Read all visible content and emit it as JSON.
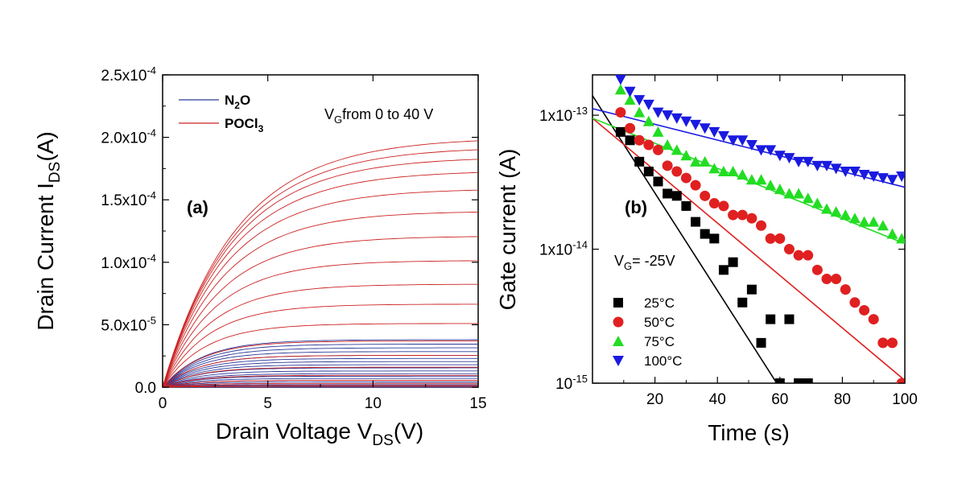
{
  "chart_data": [
    {
      "type": "line",
      "panel_label": "(a)",
      "xlabel": {
        "main": "Drain Voltage V",
        "sub": "DS",
        "tail": "(V)"
      },
      "ylabel": {
        "main": "Drain Current I",
        "sub": "DS",
        "tail": "(A)"
      },
      "xlim": [
        0,
        15
      ],
      "ylim": [
        0,
        0.00025
      ],
      "x_ticks": [
        0,
        5,
        10,
        15
      ],
      "x_tick_labels": [
        "0",
        "5",
        "10",
        "15"
      ],
      "y_ticks": [
        0,
        5e-05,
        0.0001,
        0.00015,
        0.0002,
        0.00025
      ],
      "y_tick_labels": [
        {
          "mant": "0.0",
          "exp": ""
        },
        {
          "mant": "5.0x10",
          "exp": "-5"
        },
        {
          "mant": "1.0x10",
          "exp": "-4"
        },
        {
          "mant": "1.5x10",
          "exp": "-4"
        },
        {
          "mant": "2.0x10",
          "exp": "-4"
        },
        {
          "mant": "2.5x10",
          "exp": "-4"
        }
      ],
      "annotation": {
        "main": "V",
        "sub": "G",
        "tail": "from 0 to 40 V"
      },
      "legend_placement": "top-left",
      "series": [
        {
          "name": {
            "main": "N",
            "sub": "2",
            "tail": "O"
          },
          "color": "#2b3a9a",
          "saturation_currents": [
            0.0,
            5e-07,
            1.2e-06,
            2e-06,
            3e-06,
            4.2e-06,
            5.5e-06,
            7e-06,
            8.8e-06,
            1.08e-05,
            1.3e-05,
            1.55e-05,
            1.8e-05,
            2.05e-05,
            2.3e-05,
            2.55e-05,
            2.85e-05,
            3.15e-05,
            3.45e-05,
            3.8e-05
          ]
        },
        {
          "name": {
            "main": "POCl",
            "sub": "3",
            "tail": ""
          },
          "color": "#cc2222",
          "saturation_currents": [
            5e-07,
            1.5e-06,
            3e-06,
            5.5e-06,
            9.5e-06,
            1.6e-05,
            2.55e-05,
            3.7e-05,
            5.1e-05,
            6.65e-05,
            8.25e-05,
            0.0001015,
            0.000121,
            0.000141,
            0.000159,
            0.0001735,
            0.0001845,
            0.0001925,
            0.0002
          ]
        }
      ]
    },
    {
      "type": "scatter",
      "panel_label": "(b)",
      "xlabel": "Time (s)",
      "ylabel": "Gate current (A)",
      "xlim": [
        0,
        100
      ],
      "ylim": [
        1e-15,
        2e-13
      ],
      "y_scale": "log",
      "x_ticks": [
        20,
        40,
        60,
        80,
        100
      ],
      "x_tick_labels": [
        "20",
        "40",
        "60",
        "80",
        "100"
      ],
      "y_ticks": [
        1e-15,
        1e-14,
        1e-13
      ],
      "y_tick_labels": [
        {
          "mant": "10",
          "exp": "-15"
        },
        {
          "mant": "1x10",
          "exp": "-14"
        },
        {
          "mant": "1x10",
          "exp": "-13"
        }
      ],
      "annotation": {
        "main": "V",
        "sub": "G",
        "tail": "= -25V"
      },
      "legend_placement": "bottom-left",
      "series": [
        {
          "name": "25°C",
          "marker": "square",
          "color": "#000000",
          "fit": [
            [
              0,
              1.4e-13
            ],
            [
              59,
              1e-15
            ]
          ],
          "x": [
            9,
            12,
            15,
            18,
            21,
            24,
            27,
            30,
            33,
            36,
            39,
            42,
            45,
            48,
            51,
            54,
            57,
            60,
            63,
            66,
            69
          ],
          "y": [
            7.5e-14,
            6.5e-14,
            4.5e-14,
            3.8e-14,
            3.2e-14,
            2.6e-14,
            2.5e-14,
            2.1e-14,
            1.6e-14,
            1.3e-14,
            1.2e-14,
            7e-15,
            8e-15,
            4e-15,
            5e-15,
            2e-15,
            3e-15,
            1e-15,
            3e-15,
            1e-15,
            1e-15
          ]
        },
        {
          "name": "50°C",
          "marker": "circle",
          "color": "#e02020",
          "fit": [
            [
              0,
              9.5e-14
            ],
            [
              100,
              1.05e-15
            ]
          ],
          "x": [
            9,
            12,
            15,
            18,
            21,
            24,
            27,
            30,
            33,
            36,
            39,
            42,
            45,
            48,
            51,
            54,
            57,
            60,
            63,
            66,
            69,
            72,
            75,
            78,
            81,
            84,
            87,
            90,
            93,
            96,
            99
          ],
          "y": [
            1.05e-13,
            8e-14,
            6.5e-14,
            6e-14,
            5.5e-14,
            4.2e-14,
            3.8e-14,
            3.4e-14,
            3e-14,
            2.5e-14,
            2.2e-14,
            2.1e-14,
            1.8e-14,
            1.8e-14,
            1.7e-14,
            1.5e-14,
            1.2e-14,
            1.2e-14,
            1e-14,
            9e-15,
            9e-15,
            7e-15,
            6e-15,
            6e-15,
            5e-15,
            4e-15,
            3.5e-15,
            3e-15,
            2e-15,
            2e-15,
            1e-15
          ]
        },
        {
          "name": "75°C",
          "marker": "triangle-up",
          "color": "#22dd22",
          "fit": [
            [
              0,
              9.5e-14
            ],
            [
              100,
              1.1e-14
            ]
          ],
          "x": [
            9,
            12,
            15,
            18,
            21,
            24,
            27,
            30,
            33,
            36,
            39,
            42,
            45,
            48,
            51,
            54,
            57,
            60,
            63,
            66,
            69,
            72,
            75,
            78,
            81,
            84,
            87,
            90,
            93,
            96,
            99
          ],
          "y": [
            1.55e-13,
            1.3e-13,
            1.05e-13,
            9e-14,
            7.5e-14,
            6e-14,
            5.5e-14,
            5e-14,
            4.5e-14,
            4.5e-14,
            4e-14,
            3.8e-14,
            3.8e-14,
            3.6e-14,
            3.3e-14,
            3.3e-14,
            3e-14,
            2.8e-14,
            2.6e-14,
            2.6e-14,
            2.4e-14,
            2.2e-14,
            2e-14,
            1.9e-14,
            1.8e-14,
            1.7e-14,
            1.6e-14,
            1.6e-14,
            1.5e-14,
            1.3e-14,
            1.2e-14
          ]
        },
        {
          "name": "100°C",
          "marker": "triangle-down",
          "color": "#1a1ae0",
          "fit": [
            [
              0,
              1.12e-13
            ],
            [
              100,
              2.9e-14
            ]
          ],
          "x": [
            9,
            12,
            15,
            18,
            21,
            24,
            27,
            30,
            33,
            36,
            39,
            42,
            45,
            48,
            51,
            54,
            57,
            60,
            63,
            66,
            69,
            72,
            75,
            78,
            81,
            84,
            87,
            90,
            93,
            96,
            99
          ],
          "y": [
            1.85e-13,
            1.5e-13,
            1.3e-13,
            1.2e-13,
            1.05e-13,
            1e-13,
            9.5e-14,
            9e-14,
            8.5e-14,
            8e-14,
            7.5e-14,
            7e-14,
            6.5e-14,
            6.5e-14,
            6e-14,
            5.5e-14,
            5.5e-14,
            5e-14,
            4.8e-14,
            4.5e-14,
            4.5e-14,
            4.2e-14,
            4.2e-14,
            4e-14,
            3.8e-14,
            3.8e-14,
            3.6e-14,
            3.5e-14,
            3.4e-14,
            3.3e-14,
            3.5e-14
          ]
        }
      ]
    }
  ]
}
